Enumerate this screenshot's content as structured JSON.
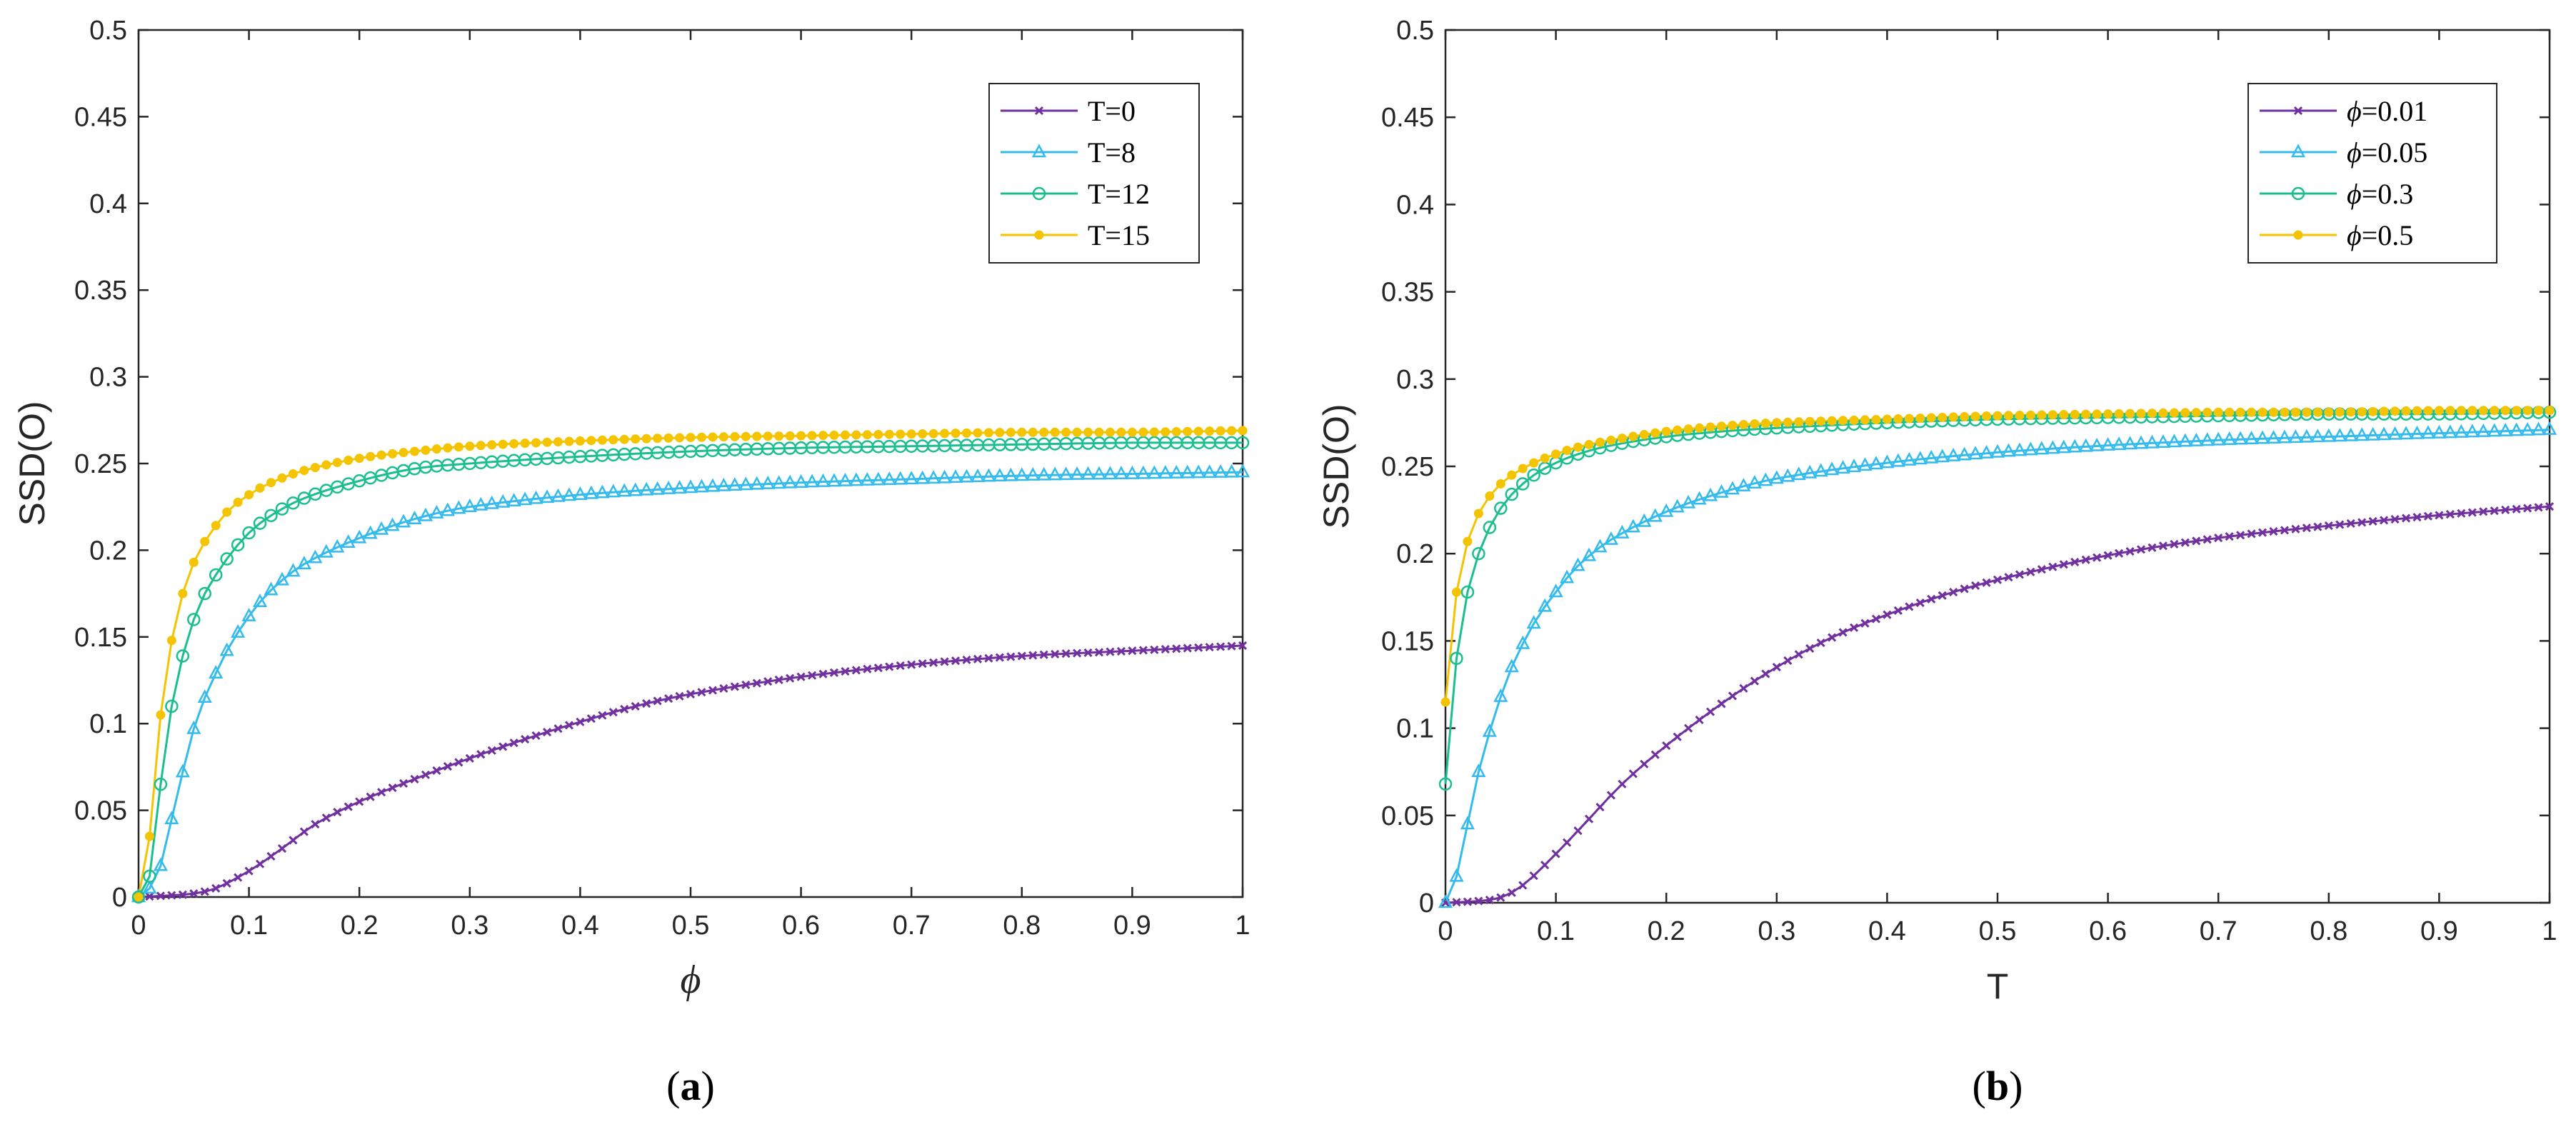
{
  "colors": {
    "purple": "#7030a0",
    "blue": "#33bbee",
    "green": "#1bbf8f",
    "yellow": "#f5c400"
  },
  "chart_data": [
    {
      "type": "line",
      "panel": "(a)",
      "caption": {
        "open": "(",
        "letter": "a",
        "close": ")"
      },
      "xlabel": "ϕ",
      "ylabel": "SSD(O)",
      "xlim": [
        0,
        1
      ],
      "ylim": [
        0,
        0.5
      ],
      "xticks": [
        "0",
        "0.1",
        "0.2",
        "0.3",
        "0.4",
        "0.5",
        "0.6",
        "0.7",
        "0.8",
        "0.9",
        "1"
      ],
      "yticks": [
        "0",
        "0.05",
        "0.1",
        "0.15",
        "0.2",
        "0.25",
        "0.3",
        "0.35",
        "0.4",
        "0.45",
        "0.5"
      ],
      "legend_position": "top-right",
      "series": [
        {
          "name": "T=0",
          "color": "#7030a0",
          "marker": "x",
          "points": [
            [
              0,
              0
            ],
            [
              0.03,
              0.001
            ],
            [
              0.05,
              0.002
            ],
            [
              0.07,
              0.005
            ],
            [
              0.1,
              0.015
            ],
            [
              0.13,
              0.028
            ],
            [
              0.16,
              0.042
            ],
            [
              0.2,
              0.055
            ],
            [
              0.25,
              0.068
            ],
            [
              0.3,
              0.08
            ],
            [
              0.35,
              0.091
            ],
            [
              0.4,
              0.101
            ],
            [
              0.45,
              0.11
            ],
            [
              0.5,
              0.117
            ],
            [
              0.6,
              0.127
            ],
            [
              0.7,
              0.134
            ],
            [
              0.8,
              0.139
            ],
            [
              0.9,
              0.142
            ],
            [
              1.0,
              0.145
            ]
          ]
        },
        {
          "name": "T=8",
          "color": "#33bbee",
          "marker": "triangle",
          "points": [
            [
              0,
              0
            ],
            [
              0.01,
              0.005
            ],
            [
              0.02,
              0.018
            ],
            [
              0.03,
              0.045
            ],
            [
              0.04,
              0.072
            ],
            [
              0.05,
              0.097
            ],
            [
              0.06,
              0.115
            ],
            [
              0.07,
              0.129
            ],
            [
              0.08,
              0.142
            ],
            [
              0.1,
              0.162
            ],
            [
              0.12,
              0.177
            ],
            [
              0.15,
              0.192
            ],
            [
              0.2,
              0.207
            ],
            [
              0.25,
              0.218
            ],
            [
              0.3,
              0.225
            ],
            [
              0.4,
              0.232
            ],
            [
              0.5,
              0.236
            ],
            [
              0.6,
              0.239
            ],
            [
              0.7,
              0.241
            ],
            [
              0.8,
              0.243
            ],
            [
              0.9,
              0.244
            ],
            [
              1.0,
              0.245
            ]
          ]
        },
        {
          "name": "T=12",
          "color": "#1bbf8f",
          "marker": "circle",
          "points": [
            [
              0,
              0
            ],
            [
              0.01,
              0.012
            ],
            [
              0.02,
              0.065
            ],
            [
              0.03,
              0.11
            ],
            [
              0.04,
              0.139
            ],
            [
              0.05,
              0.16
            ],
            [
              0.06,
              0.175
            ],
            [
              0.08,
              0.195
            ],
            [
              0.1,
              0.21
            ],
            [
              0.12,
              0.22
            ],
            [
              0.15,
              0.23
            ],
            [
              0.2,
              0.24
            ],
            [
              0.25,
              0.247
            ],
            [
              0.3,
              0.25
            ],
            [
              0.4,
              0.254
            ],
            [
              0.5,
              0.257
            ],
            [
              0.6,
              0.259
            ],
            [
              0.7,
              0.26
            ],
            [
              0.8,
              0.261
            ],
            [
              0.9,
              0.262
            ],
            [
              1.0,
              0.262
            ]
          ]
        },
        {
          "name": "T=15",
          "color": "#f5c400",
          "marker": "dot",
          "points": [
            [
              0,
              0
            ],
            [
              0.01,
              0.035
            ],
            [
              0.02,
              0.105
            ],
            [
              0.03,
              0.148
            ],
            [
              0.04,
              0.175
            ],
            [
              0.05,
              0.193
            ],
            [
              0.06,
              0.205
            ],
            [
              0.08,
              0.222
            ],
            [
              0.1,
              0.232
            ],
            [
              0.12,
              0.239
            ],
            [
              0.15,
              0.246
            ],
            [
              0.2,
              0.253
            ],
            [
              0.25,
              0.257
            ],
            [
              0.3,
              0.26
            ],
            [
              0.4,
              0.263
            ],
            [
              0.5,
              0.265
            ],
            [
              0.6,
              0.266
            ],
            [
              0.7,
              0.267
            ],
            [
              0.8,
              0.268
            ],
            [
              0.9,
              0.268
            ],
            [
              1.0,
              0.269
            ]
          ]
        }
      ]
    },
    {
      "type": "line",
      "panel": "(b)",
      "caption": {
        "open": "(",
        "letter": "b",
        "close": ")"
      },
      "xlabel": "T",
      "ylabel": "SSD(O)",
      "xlim": [
        0,
        1
      ],
      "ylim": [
        0,
        0.5
      ],
      "xticks": [
        "0",
        "0.1",
        "0.2",
        "0.3",
        "0.4",
        "0.5",
        "0.6",
        "0.7",
        "0.8",
        "0.9",
        "1"
      ],
      "yticks": [
        "0",
        "0.05",
        "0.1",
        "0.15",
        "0.2",
        "0.25",
        "0.3",
        "0.35",
        "0.4",
        "0.45",
        "0.5"
      ],
      "legend_position": "top-right",
      "series": [
        {
          "name": "ϕ=0.01",
          "legend_sym": "ϕ",
          "legend_val": "=0.01",
          "color": "#7030a0",
          "marker": "x",
          "points": [
            [
              0,
              0
            ],
            [
              0.03,
              0.001
            ],
            [
              0.05,
              0.003
            ],
            [
              0.07,
              0.01
            ],
            [
              0.1,
              0.028
            ],
            [
              0.13,
              0.048
            ],
            [
              0.16,
              0.068
            ],
            [
              0.2,
              0.09
            ],
            [
              0.25,
              0.114
            ],
            [
              0.3,
              0.135
            ],
            [
              0.35,
              0.152
            ],
            [
              0.4,
              0.165
            ],
            [
              0.45,
              0.176
            ],
            [
              0.5,
              0.185
            ],
            [
              0.6,
              0.199
            ],
            [
              0.7,
              0.209
            ],
            [
              0.8,
              0.216
            ],
            [
              0.9,
              0.222
            ],
            [
              1.0,
              0.227
            ]
          ]
        },
        {
          "name": "ϕ=0.05",
          "legend_sym": "ϕ",
          "legend_val": "=0.05",
          "color": "#33bbee",
          "marker": "triangle",
          "points": [
            [
              0,
              0
            ],
            [
              0.01,
              0.015
            ],
            [
              0.02,
              0.045
            ],
            [
              0.03,
              0.075
            ],
            [
              0.04,
              0.098
            ],
            [
              0.05,
              0.118
            ],
            [
              0.06,
              0.135
            ],
            [
              0.08,
              0.16
            ],
            [
              0.1,
              0.178
            ],
            [
              0.12,
              0.193
            ],
            [
              0.15,
              0.208
            ],
            [
              0.2,
              0.224
            ],
            [
              0.25,
              0.235
            ],
            [
              0.3,
              0.243
            ],
            [
              0.4,
              0.252
            ],
            [
              0.5,
              0.258
            ],
            [
              0.6,
              0.262
            ],
            [
              0.7,
              0.265
            ],
            [
              0.8,
              0.267
            ],
            [
              0.9,
              0.269
            ],
            [
              1.0,
              0.271
            ]
          ]
        },
        {
          "name": "ϕ=0.3",
          "legend_sym": "ϕ",
          "legend_val": "=0.3",
          "color": "#1bbf8f",
          "marker": "circle",
          "points": [
            [
              0,
              0.068
            ],
            [
              0.01,
              0.14
            ],
            [
              0.02,
              0.178
            ],
            [
              0.03,
              0.2
            ],
            [
              0.04,
              0.215
            ],
            [
              0.05,
              0.226
            ],
            [
              0.06,
              0.234
            ],
            [
              0.08,
              0.245
            ],
            [
              0.1,
              0.252
            ],
            [
              0.12,
              0.257
            ],
            [
              0.15,
              0.262
            ],
            [
              0.2,
              0.267
            ],
            [
              0.25,
              0.27
            ],
            [
              0.3,
              0.272
            ],
            [
              0.4,
              0.275
            ],
            [
              0.5,
              0.277
            ],
            [
              0.6,
              0.278
            ],
            [
              0.7,
              0.279
            ],
            [
              0.8,
              0.28
            ],
            [
              0.9,
              0.28
            ],
            [
              1.0,
              0.281
            ]
          ]
        },
        {
          "name": "ϕ=0.5",
          "legend_sym": "ϕ",
          "legend_val": "=0.5",
          "color": "#f5c400",
          "marker": "dot",
          "points": [
            [
              0,
              0.115
            ],
            [
              0.01,
              0.178
            ],
            [
              0.02,
              0.207
            ],
            [
              0.03,
              0.223
            ],
            [
              0.04,
              0.233
            ],
            [
              0.05,
              0.24
            ],
            [
              0.06,
              0.245
            ],
            [
              0.08,
              0.252
            ],
            [
              0.1,
              0.257
            ],
            [
              0.12,
              0.261
            ],
            [
              0.15,
              0.265
            ],
            [
              0.2,
              0.27
            ],
            [
              0.25,
              0.273
            ],
            [
              0.3,
              0.275
            ],
            [
              0.4,
              0.277
            ],
            [
              0.5,
              0.279
            ],
            [
              0.6,
              0.28
            ],
            [
              0.7,
              0.281
            ],
            [
              0.8,
              0.281
            ],
            [
              0.9,
              0.282
            ],
            [
              1.0,
              0.282
            ]
          ]
        }
      ]
    }
  ]
}
